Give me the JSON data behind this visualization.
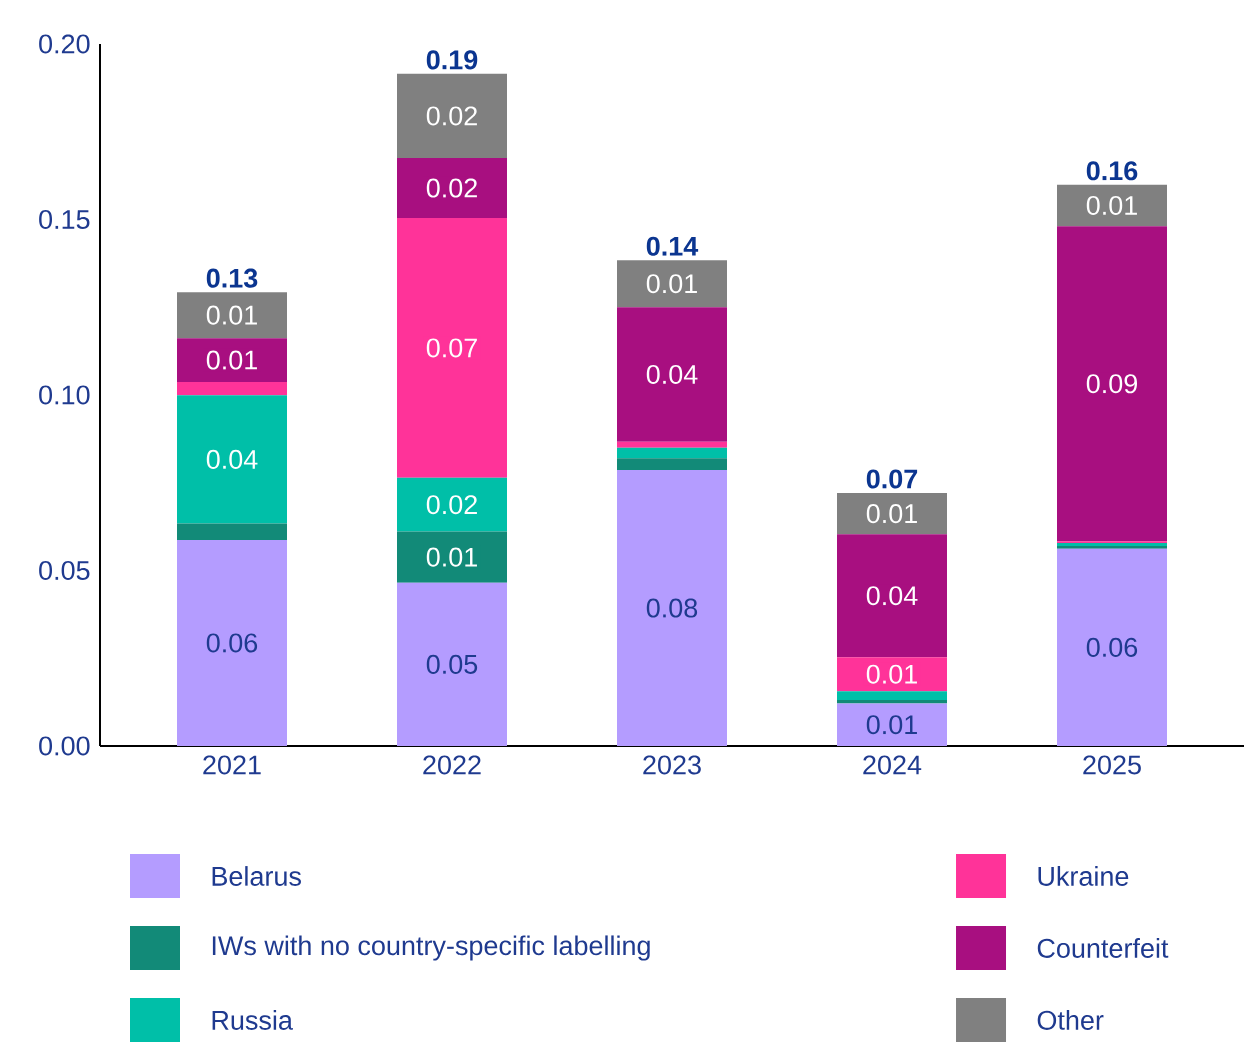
{
  "chart_data": {
    "type": "bar",
    "stacked": true,
    "categories": [
      "2021",
      "2022",
      "2023",
      "2024",
      "2025"
    ],
    "series": [
      {
        "name": "Belarus",
        "color": "#b49cff",
        "values": [
          0.0587,
          0.0465,
          0.0786,
          0.0121,
          0.0562
        ],
        "value_labels": [
          "0.06",
          "0.05",
          "0.08",
          "0.01",
          "0.06"
        ]
      },
      {
        "name": "IWs with no country-specific labelling",
        "color": "#128a78",
        "values": [
          0.0047,
          0.0146,
          0.0034,
          0.001,
          0.0008
        ],
        "value_labels": [
          null,
          "0.01",
          null,
          null,
          null
        ]
      },
      {
        "name": "Russia",
        "color": "#00bfa8",
        "values": [
          0.0365,
          0.0153,
          0.003,
          0.0025,
          0.0008
        ],
        "value_labels": [
          "0.04",
          "0.02",
          null,
          null,
          null
        ]
      },
      {
        "name": "Ukraine",
        "color": "#ff3399",
        "values": [
          0.0038,
          0.074,
          0.0017,
          0.0097,
          0.0005
        ],
        "value_labels": [
          null,
          "0.07",
          null,
          "0.01",
          null
        ]
      },
      {
        "name": "Counterfeit",
        "color": "#a80f80",
        "values": [
          0.0125,
          0.0171,
          0.0383,
          0.035,
          0.0898
        ],
        "value_labels": [
          "0.01",
          "0.02",
          "0.04",
          "0.04",
          "0.09"
        ]
      },
      {
        "name": "Other",
        "color": "#808080",
        "values": [
          0.0131,
          0.024,
          0.0134,
          0.0118,
          0.0118
        ],
        "value_labels": [
          "0.01",
          "0.02",
          "0.01",
          "0.01",
          "0.01"
        ]
      }
    ],
    "totals": [
      "0.13",
      "0.19",
      "0.14",
      "0.07",
      "0.16"
    ],
    "ylim": [
      0,
      0.2
    ],
    "yticks": [
      {
        "value": 0,
        "label": "0.00"
      },
      {
        "value": 0.05,
        "label": "0.05"
      },
      {
        "value": 0.1,
        "label": "0.10"
      },
      {
        "value": 0.15,
        "label": "0.15"
      },
      {
        "value": 0.2,
        "label": "0.20"
      }
    ],
    "legend": "bottom"
  }
}
